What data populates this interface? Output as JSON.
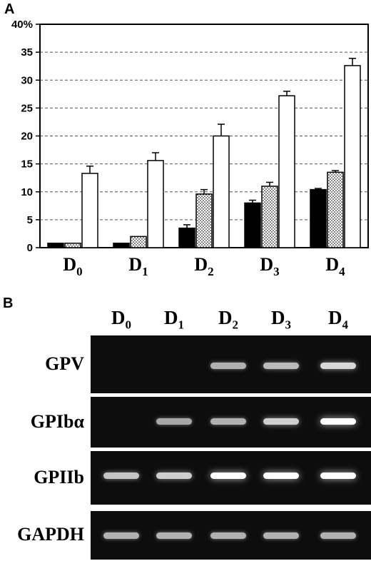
{
  "panels": {
    "a_letter": "A",
    "b_letter": "B"
  },
  "chart_data": {
    "type": "bar",
    "categories": [
      "D0",
      "D1",
      "D2",
      "D3",
      "D4"
    ],
    "category_labels": [
      {
        "main": "D",
        "sub": "0"
      },
      {
        "main": "D",
        "sub": "1"
      },
      {
        "main": "D",
        "sub": "2"
      },
      {
        "main": "D",
        "sub": "3"
      },
      {
        "main": "D",
        "sub": "4"
      }
    ],
    "series": [
      {
        "fill": "solid-black",
        "values": [
          0.8,
          0.8,
          3.5,
          8.0,
          10.4
        ],
        "errors": [
          0,
          0,
          0.6,
          0.5,
          0.2
        ]
      },
      {
        "fill": "dotted",
        "values": [
          0.8,
          2.0,
          9.6,
          11.0,
          13.5
        ],
        "errors": [
          0,
          0,
          0.8,
          0.7,
          0.3
        ]
      },
      {
        "fill": "white",
        "values": [
          13.3,
          15.6,
          20.0,
          27.2,
          32.6
        ],
        "errors": [
          1.3,
          1.4,
          2.1,
          0.8,
          1.3
        ]
      }
    ],
    "ylim": [
      0,
      40
    ],
    "yticks": [
      0,
      5,
      10,
      15,
      20,
      25,
      30,
      35,
      40
    ],
    "ytick_labels": [
      "0",
      "5",
      "10",
      "15",
      "20",
      "25",
      "30",
      "35",
      "40%"
    ],
    "grid": "dashed horizontal",
    "xlabel": "",
    "ylabel": "",
    "title": ""
  },
  "gel": {
    "lanes": [
      {
        "main": "D",
        "sub": "0"
      },
      {
        "main": "D",
        "sub": "1"
      },
      {
        "main": "D",
        "sub": "2"
      },
      {
        "main": "D",
        "sub": "3"
      },
      {
        "main": "D",
        "sub": "4"
      }
    ],
    "rows": [
      {
        "label": "GPV",
        "intensities": [
          0,
          0,
          0.6,
          0.65,
          0.8
        ]
      },
      {
        "label": "GPIbα",
        "intensities": [
          0,
          0.55,
          0.6,
          0.75,
          1.0
        ]
      },
      {
        "label": "GPIIb",
        "intensities": [
          0.7,
          0.75,
          1.0,
          1.0,
          1.0
        ]
      },
      {
        "label": "GAPDH",
        "intensities": [
          0.6,
          0.6,
          0.6,
          0.6,
          0.6
        ]
      }
    ]
  }
}
